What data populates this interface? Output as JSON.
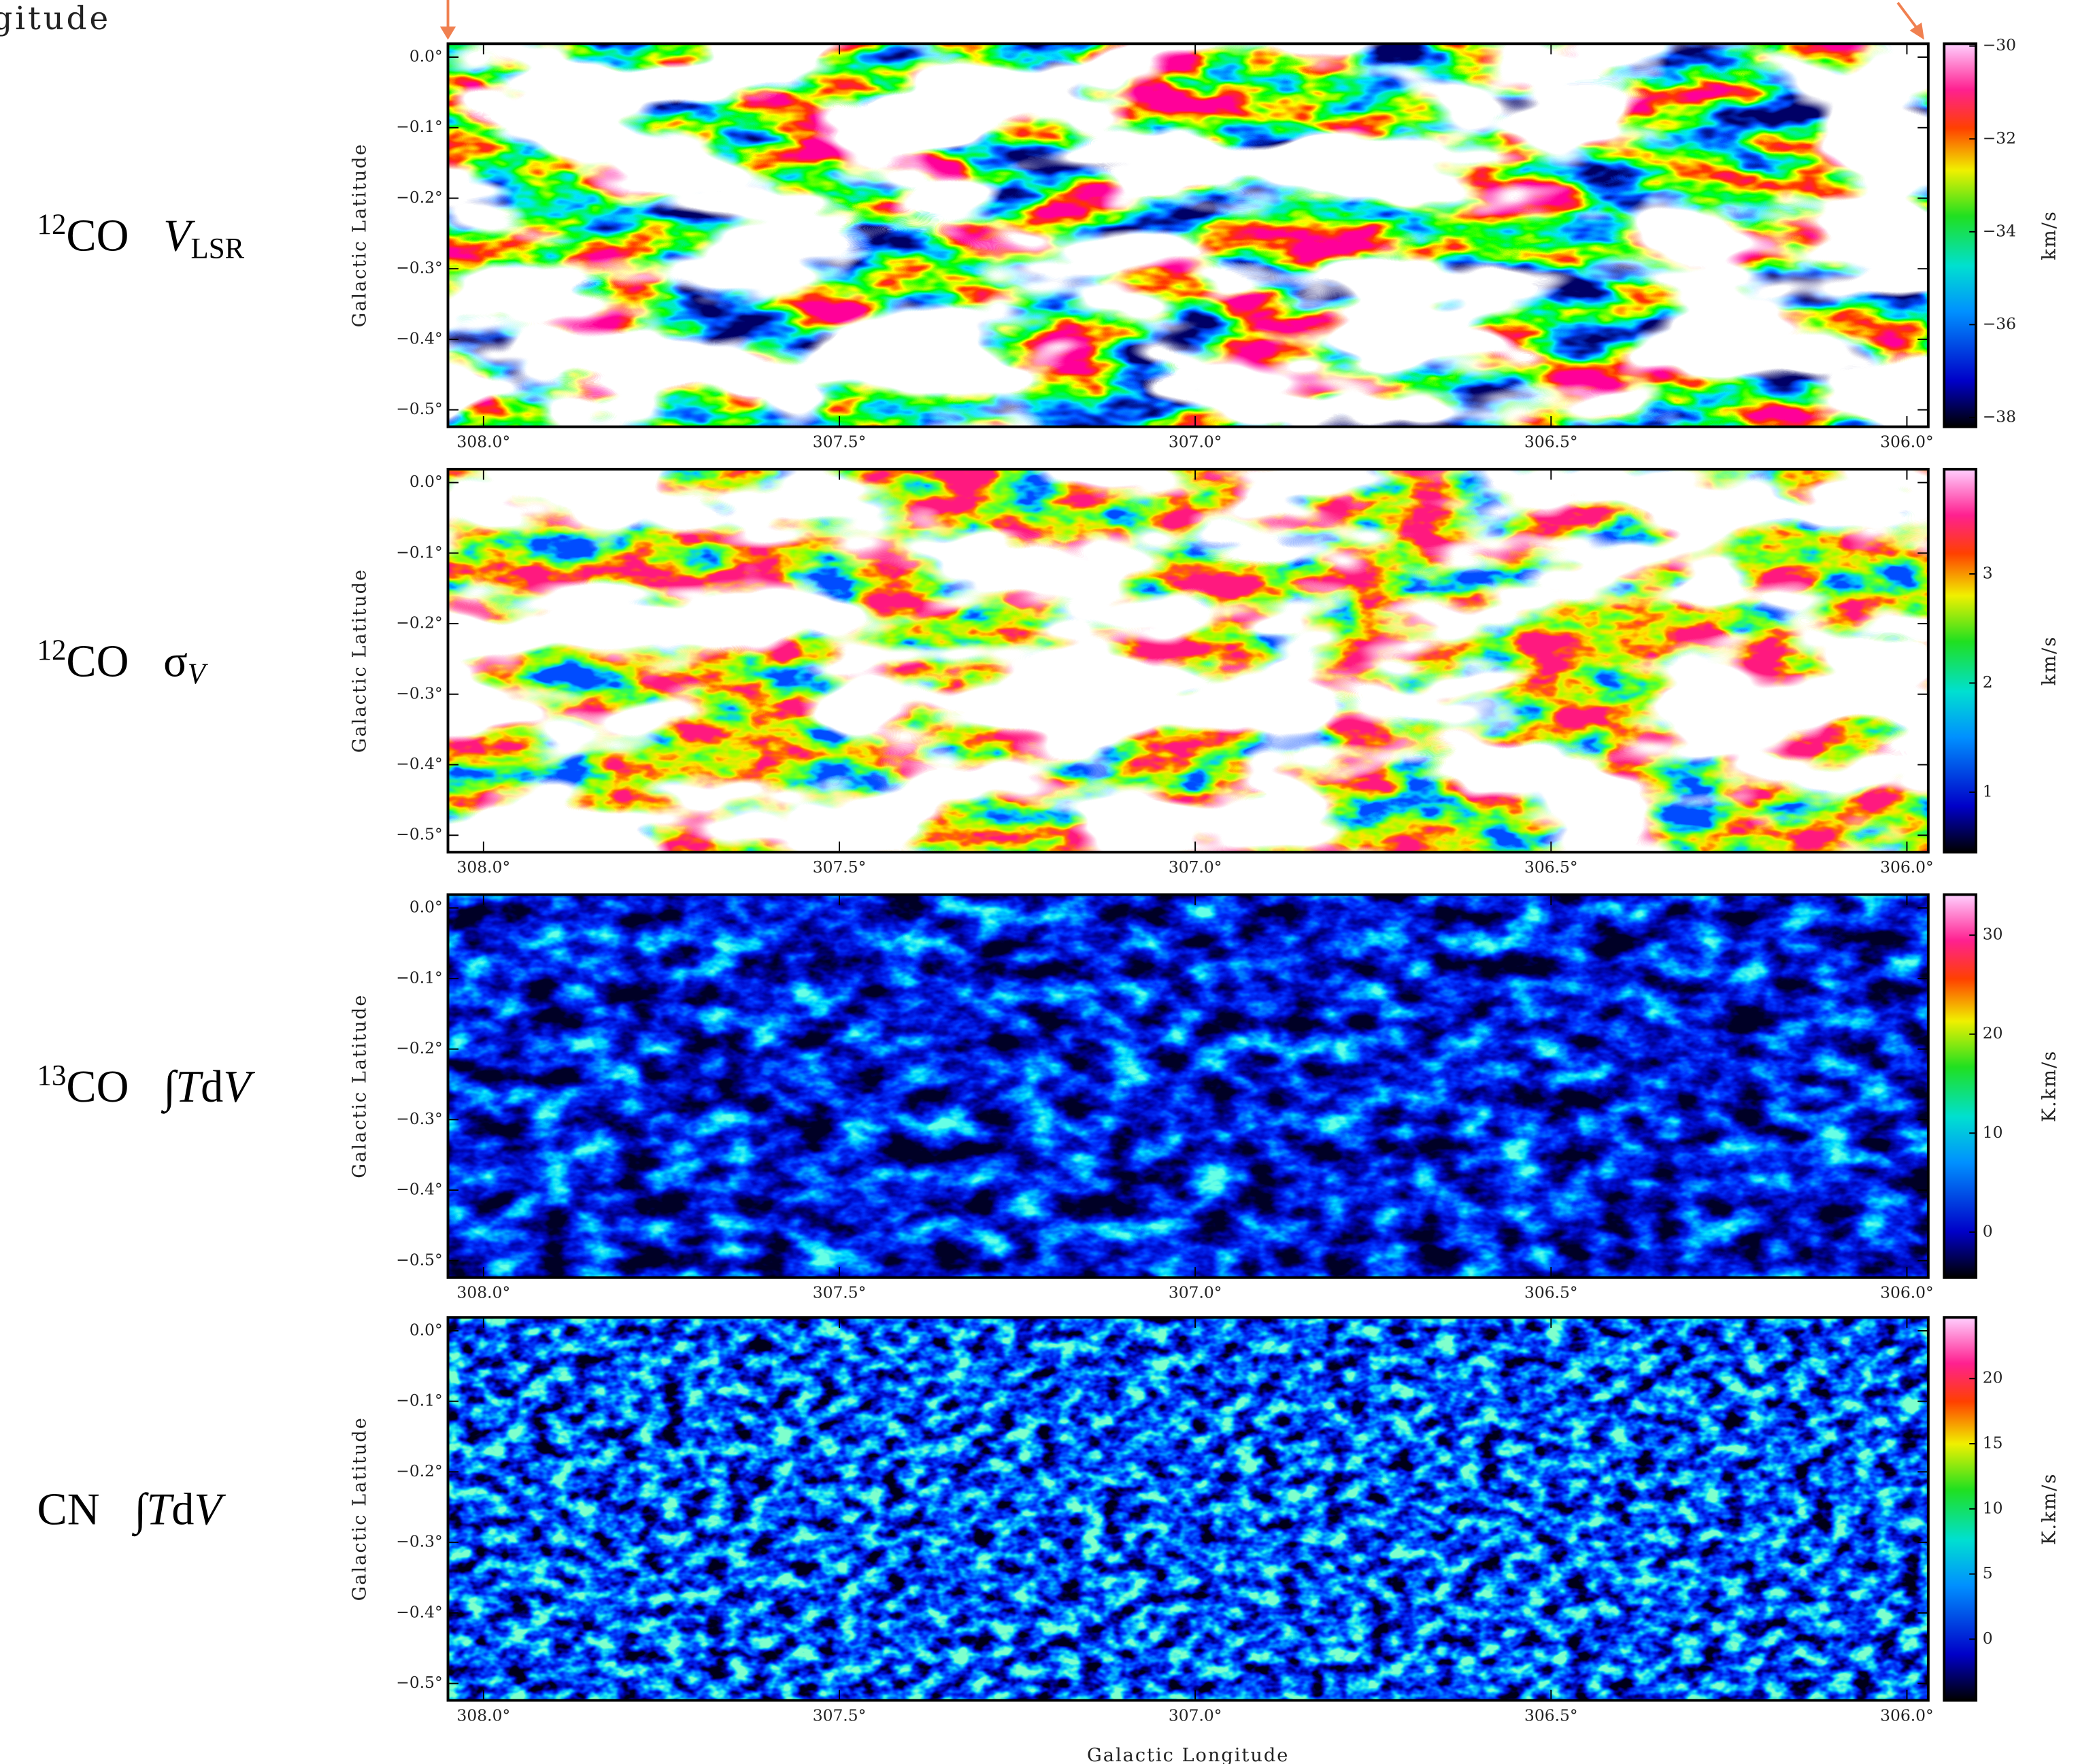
{
  "header_text": "gitude",
  "chart_data": [
    {
      "type": "heatmap",
      "row_label": [
        {
          "text": "12",
          "style": "sup"
        },
        {
          "text": "CO"
        },
        {
          "text": "V",
          "style": "italic"
        },
        {
          "text": "LSR",
          "style": "sub"
        }
      ],
      "ylabel": "Galactic Latitude",
      "xlim": [
        308.05,
        305.97
      ],
      "ylim": [
        -0.524,
        0.019
      ],
      "xticks": [
        {
          "value": 308.0,
          "label": "308.0°"
        },
        {
          "value": 307.5,
          "label": "307.5°"
        },
        {
          "value": 307.0,
          "label": "307.0°"
        },
        {
          "value": 306.5,
          "label": "306.5°"
        },
        {
          "value": 306.0,
          "label": "306.0°"
        }
      ],
      "yticks": [
        {
          "value": 0,
          "label": "0.0°"
        },
        {
          "value": -0.1,
          "label": "−0.1°"
        },
        {
          "value": -0.2,
          "label": "−0.2°"
        },
        {
          "value": -0.3,
          "label": "−0.3°"
        },
        {
          "value": -0.4,
          "label": "−0.4°"
        },
        {
          "value": -0.5,
          "label": "−0.5°"
        }
      ],
      "colorbar": {
        "label": "km/s",
        "lim": [
          -38.2,
          -29.95
        ],
        "ticks": [
          {
            "value": -30,
            "label": "−30"
          },
          {
            "value": -32,
            "label": "−32"
          },
          {
            "value": -34,
            "label": "−34"
          },
          {
            "value": -36,
            "label": "−36"
          },
          {
            "value": -38,
            "label": "−38"
          }
        ]
      }
    },
    {
      "type": "heatmap",
      "row_label": [
        {
          "text": "12",
          "style": "sup"
        },
        {
          "text": "CO"
        },
        {
          "text": "σ"
        },
        {
          "text": "V",
          "style": "italic-sub"
        }
      ],
      "ylabel": "Galactic Latitude",
      "xlim": [
        308.05,
        305.97
      ],
      "ylim": [
        -0.524,
        0.019
      ],
      "xticks": [
        {
          "value": 308.0,
          "label": "308.0°"
        },
        {
          "value": 307.5,
          "label": "307.5°"
        },
        {
          "value": 307.0,
          "label": "307.0°"
        },
        {
          "value": 306.5,
          "label": "306.5°"
        },
        {
          "value": 306.0,
          "label": "306.0°"
        }
      ],
      "yticks": [
        {
          "value": 0,
          "label": "0.0°"
        },
        {
          "value": -0.1,
          "label": "−0.1°"
        },
        {
          "value": -0.2,
          "label": "−0.2°"
        },
        {
          "value": -0.3,
          "label": "−0.3°"
        },
        {
          "value": -0.4,
          "label": "−0.4°"
        },
        {
          "value": -0.5,
          "label": "−0.5°"
        }
      ],
      "colorbar": {
        "label": "km/s",
        "lim": [
          0.45,
          3.96
        ],
        "ticks": [
          1,
          2,
          3
        ]
      }
    },
    {
      "type": "heatmap",
      "row_label": [
        {
          "text": "13",
          "style": "sup"
        },
        {
          "text": "CO"
        },
        {
          "text": "∫"
        },
        {
          "text": "T",
          "style": "italic"
        },
        {
          "text": "d"
        },
        {
          "text": "V",
          "style": "italic"
        }
      ],
      "ylabel": "Galactic Latitude",
      "xlim": [
        308.05,
        305.97
      ],
      "ylim": [
        -0.524,
        0.019
      ],
      "xticks": [
        {
          "value": 308.0,
          "label": "308.0°"
        },
        {
          "value": 307.5,
          "label": "307.5°"
        },
        {
          "value": 307.0,
          "label": "307.0°"
        },
        {
          "value": 306.5,
          "label": "306.5°"
        },
        {
          "value": 306.0,
          "label": "306.0°"
        }
      ],
      "yticks": [
        {
          "value": 0,
          "label": "0.0°"
        },
        {
          "value": -0.1,
          "label": "−0.1°"
        },
        {
          "value": -0.2,
          "label": "−0.2°"
        },
        {
          "value": -0.3,
          "label": "−0.3°"
        },
        {
          "value": -0.4,
          "label": "−0.4°"
        },
        {
          "value": -0.5,
          "label": "−0.5°"
        }
      ],
      "colorbar": {
        "label": "K.km/s",
        "lim": [
          -4.6,
          34.1
        ],
        "ticks": [
          0,
          10,
          20,
          30
        ]
      }
    },
    {
      "type": "heatmap",
      "row_label": [
        {
          "text": "CN"
        },
        {
          "text": "∫"
        },
        {
          "text": "T",
          "style": "italic"
        },
        {
          "text": "d"
        },
        {
          "text": "V",
          "style": "italic"
        }
      ],
      "ylabel": "Galactic Latitude",
      "xlabel": "Galactic Longitude",
      "xlim": [
        308.05,
        305.97
      ],
      "ylim": [
        -0.524,
        0.019
      ],
      "xticks": [
        {
          "value": 308.0,
          "label": "308.0°"
        },
        {
          "value": 307.5,
          "label": "307.5°"
        },
        {
          "value": 307.0,
          "label": "307.0°"
        },
        {
          "value": 306.5,
          "label": "306.5°"
        },
        {
          "value": 306.0,
          "label": "306.0°"
        }
      ],
      "yticks": [
        {
          "value": 0,
          "label": "0.0°"
        },
        {
          "value": -0.1,
          "label": "−0.1°"
        },
        {
          "value": -0.2,
          "label": "−0.2°"
        },
        {
          "value": -0.3,
          "label": "−0.3°"
        },
        {
          "value": -0.4,
          "label": "−0.4°"
        },
        {
          "value": -0.5,
          "label": "−0.5°"
        }
      ],
      "colorbar": {
        "label": "K.km/s",
        "lim": [
          -4.7,
          24.7
        ],
        "ticks": [
          0,
          5,
          10,
          15,
          20
        ]
      }
    }
  ]
}
